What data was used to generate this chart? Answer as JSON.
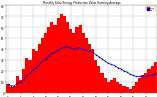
{
  "title": "Monthly Solar Energy Production Value Running Average",
  "bar_color": "#ff0000",
  "avg_color": "#0000cc",
  "bg_color": "#ffffff",
  "grid_color": "#aaaaaa",
  "values": [
    8,
    5,
    6,
    15,
    12,
    22,
    32,
    30,
    40,
    38,
    45,
    50,
    55,
    60,
    65,
    62,
    68,
    72,
    70,
    65,
    58,
    55,
    60,
    62,
    55,
    50,
    45,
    40,
    30,
    25,
    18,
    14,
    10,
    12,
    14,
    10,
    8,
    6,
    5,
    4,
    6,
    10,
    14,
    16,
    18,
    22,
    25,
    28
  ],
  "running_avg": [
    8,
    6.5,
    6.3,
    9,
    9.6,
    12,
    16,
    18,
    21,
    23,
    26,
    29,
    31,
    34,
    36,
    37,
    39,
    41,
    42,
    42,
    41,
    40,
    41,
    41,
    40,
    39,
    38,
    37,
    35,
    33,
    31,
    29,
    27,
    26,
    25,
    23,
    22,
    20,
    19,
    17,
    16,
    15,
    15,
    15,
    15,
    16,
    16,
    17
  ],
  "ylim": [
    0,
    80
  ],
  "yticks": [
    0,
    10,
    20,
    30,
    40,
    50,
    60,
    70,
    80
  ],
  "ytick_labels": [
    "0",
    "10",
    "20",
    "30",
    "40",
    "50",
    "60",
    "70",
    "80"
  ],
  "n_bars": 48
}
